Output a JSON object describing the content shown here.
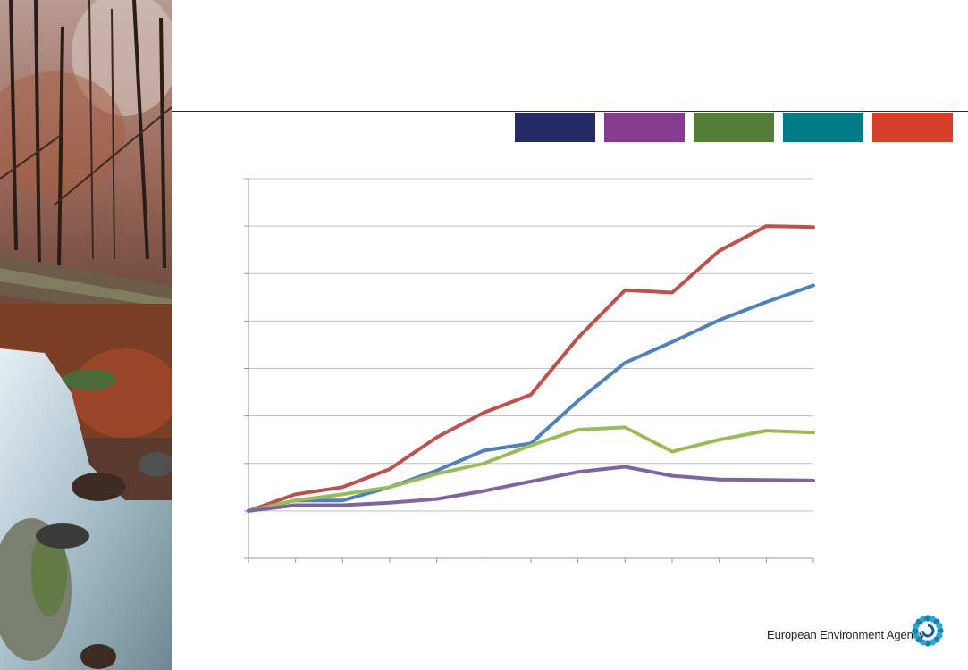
{
  "slide": {
    "swatch_colors": [
      "#262a64",
      "#853b8e",
      "#557f38",
      "#007a87",
      "#d5402b"
    ]
  },
  "chart_data": {
    "type": "line",
    "x": [
      0,
      1,
      2,
      3,
      4,
      5,
      6,
      7,
      8,
      9,
      10,
      11,
      12
    ],
    "ylim": [
      -1,
      7
    ],
    "grid": true,
    "series": [
      {
        "color": "#c0504d",
        "values": [
          0,
          0.35,
          0.5,
          0.88,
          1.55,
          2.07,
          2.45,
          3.65,
          4.65,
          4.6,
          5.48,
          6.0,
          5.98
        ]
      },
      {
        "color": "#4f81bd",
        "values": [
          0,
          0.22,
          0.22,
          0.5,
          0.85,
          1.27,
          1.42,
          2.32,
          3.12,
          3.56,
          4.02,
          4.4,
          4.75
        ]
      },
      {
        "color": "#9bbb59",
        "values": [
          0,
          0.22,
          0.35,
          0.5,
          0.78,
          1.0,
          1.38,
          1.71,
          1.76,
          1.25,
          1.5,
          1.69,
          1.65
        ]
      },
      {
        "color": "#8064a2",
        "values": [
          0,
          0.12,
          0.12,
          0.17,
          0.25,
          0.42,
          0.62,
          0.82,
          0.93,
          0.74,
          0.66,
          0.65,
          0.64
        ]
      }
    ]
  },
  "logo": {
    "text": "European Environment Agency",
    "icon": "eea-sun-logo-icon"
  }
}
